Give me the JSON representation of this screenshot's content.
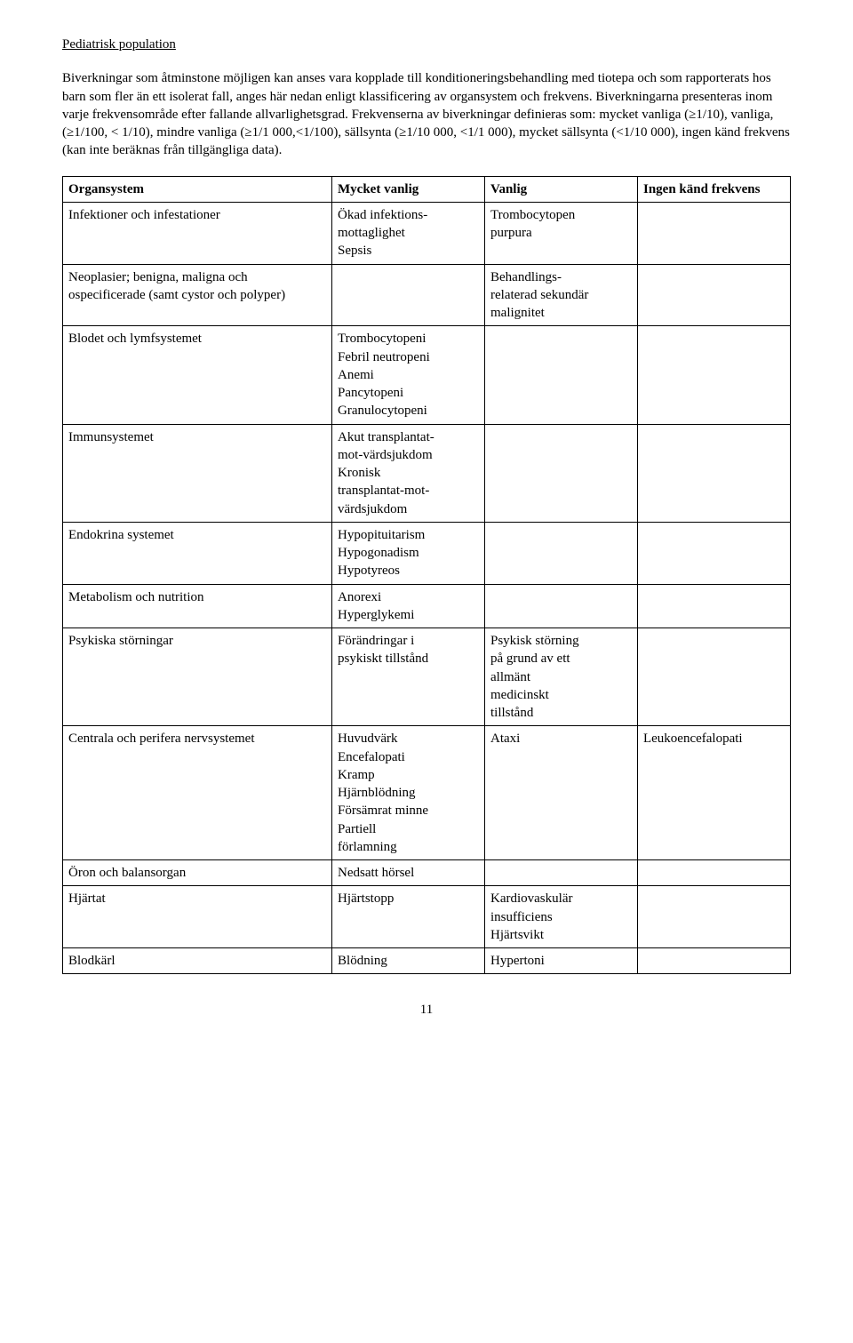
{
  "heading": "Pediatrisk population",
  "paragraph1": "Biverkningar som åtminstone möjligen kan anses vara kopplade till konditioneringsbehandling med tiotepa och som rapporterats hos barn som fler än ett isolerat fall, anges här nedan enligt klassificering av organsystem och frekvens. Biverkningarna presenteras inom varje frekvensområde efter fallande allvarlighetsgrad. Frekvenserna av biverkningar definieras som: mycket vanliga (≥1/10), vanliga, (≥1/100, < 1/10), mindre vanliga (≥1/1 000,<1/100), sällsynta (≥1/10 000, <1/1 000), mycket sällsynta (<1/10 000), ingen känd frekvens (kan inte beräknas från tillgängliga data).",
  "columns": {
    "c0": "Organsystem",
    "c1": "Mycket vanlig",
    "c2": "Vanlig",
    "c3": "Ingen känd frekvens"
  },
  "rows": [
    {
      "organ": "Infektioner och infestationer",
      "mycket": [
        "Ökad infektions-",
        "mottaglighet",
        "Sepsis"
      ],
      "vanlig": [
        "Trombocytopen",
        "purpura"
      ],
      "ingen": []
    },
    {
      "organ": "Neoplasier; benigna, maligna och ospecificerade (samt cystor och polyper)",
      "mycket": [],
      "vanlig": [
        "Behandlings-",
        "relaterad sekundär",
        "malignitet"
      ],
      "ingen": []
    },
    {
      "organ": "Blodet och lymfsystemet",
      "mycket": [
        "Trombocytopeni",
        "Febril neutropeni",
        "Anemi",
        "Pancytopeni",
        "Granulocytopeni"
      ],
      "vanlig": [],
      "ingen": []
    },
    {
      "organ": "Immunsystemet",
      "mycket": [
        "Akut transplantat-",
        "mot-värdsjukdom",
        "Kronisk",
        "transplantat-mot-",
        "värdsjukdom"
      ],
      "vanlig": [],
      "ingen": []
    },
    {
      "organ": "Endokrina systemet",
      "mycket": [
        "Hypopituitarism",
        "Hypogonadism",
        "Hypotyreos"
      ],
      "vanlig": [],
      "ingen": []
    },
    {
      "organ": "Metabolism och nutrition",
      "mycket": [
        "Anorexi",
        "Hyperglykemi"
      ],
      "vanlig": [],
      "ingen": []
    },
    {
      "organ": "Psykiska störningar",
      "mycket": [
        "Förändringar i",
        "psykiskt tillstånd"
      ],
      "vanlig": [
        "Psykisk störning",
        "på grund av ett",
        "allmänt",
        "medicinskt",
        "tillstånd"
      ],
      "ingen": []
    },
    {
      "organ": "Centrala och perifera nervsystemet",
      "mycket": [
        "Huvudvärk",
        "Encefalopati",
        "Kramp",
        "Hjärnblödning",
        "Försämrat minne",
        "Partiell",
        "förlamning"
      ],
      "vanlig": [
        "Ataxi"
      ],
      "ingen": [
        "Leukoencefalopati"
      ]
    },
    {
      "organ": "Öron och balansorgan",
      "mycket": [
        "Nedsatt hörsel"
      ],
      "vanlig": [],
      "ingen": []
    },
    {
      "organ": "Hjärtat",
      "mycket": [
        "Hjärtstopp"
      ],
      "vanlig": [
        "Kardiovaskulär",
        "insufficiens",
        "Hjärtsvikt"
      ],
      "ingen": []
    },
    {
      "organ": "Blodkärl",
      "mycket": [
        "Blödning"
      ],
      "vanlig": [
        "Hypertoni"
      ],
      "ingen": []
    }
  ],
  "pageNumber": "11"
}
